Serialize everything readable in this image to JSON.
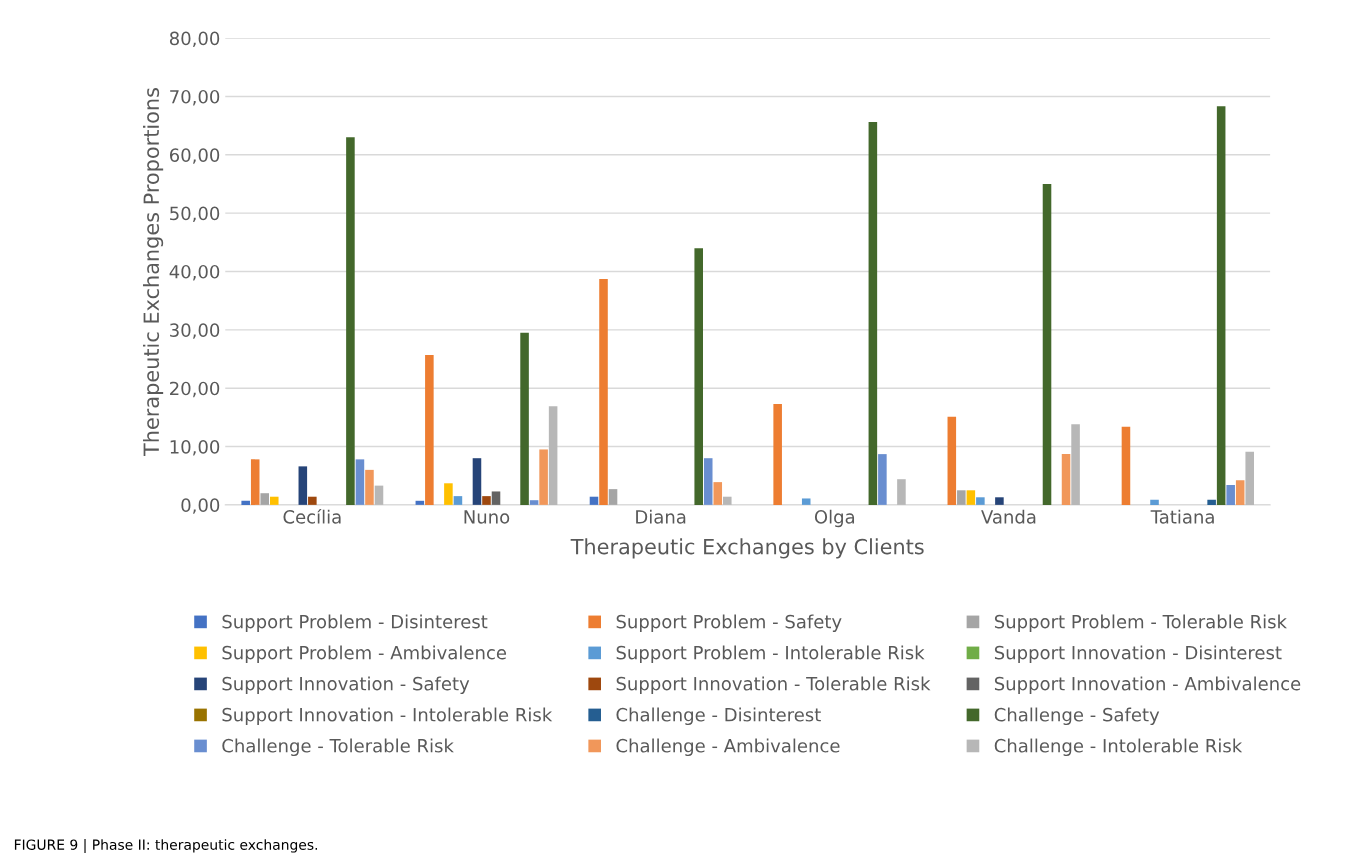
{
  "chart_data": {
    "type": "bar",
    "xlabel": "Therapeutic Exchanges by Clients",
    "ylabel": "Therapeutic Exchanges Proportions",
    "categories": [
      "Cecília",
      "Nuno",
      "Diana",
      "Olga",
      "Vanda",
      "Tatiana"
    ],
    "series": [
      {
        "name": "Support Problem - Disinterest",
        "color": "#4472c4",
        "values": [
          0.7,
          0.7,
          1.4,
          0,
          0,
          0
        ]
      },
      {
        "name": "Support Problem - Safety",
        "color": "#ed7d31",
        "values": [
          7.8,
          25.7,
          38.7,
          17.3,
          15.1,
          13.4
        ]
      },
      {
        "name": "Support Problem - Tolerable Risk",
        "color": "#a5a5a5",
        "values": [
          2.0,
          0,
          2.7,
          0,
          2.5,
          0
        ]
      },
      {
        "name": "Support Problem - Ambivalence",
        "color": "#ffc000",
        "values": [
          1.4,
          3.7,
          0,
          0,
          2.5,
          0
        ]
      },
      {
        "name": "Support Problem - Intolerable Risk",
        "color": "#5b9bd5",
        "values": [
          0,
          1.5,
          0,
          1.1,
          1.3,
          0.9
        ]
      },
      {
        "name": "Support Innovation - Disinterest",
        "color": "#70ad47",
        "values": [
          0,
          0,
          0,
          0,
          0,
          0
        ]
      },
      {
        "name": "Support Innovation - Safety",
        "color": "#264478",
        "values": [
          6.6,
          8.0,
          0,
          0,
          1.3,
          0
        ]
      },
      {
        "name": "Support Innovation - Tolerable Risk",
        "color": "#9e480e",
        "values": [
          1.4,
          1.5,
          0,
          0,
          0,
          0
        ]
      },
      {
        "name": "Support Innovation - Ambivalence",
        "color": "#636363",
        "values": [
          0,
          2.3,
          0,
          0,
          0,
          0
        ]
      },
      {
        "name": "Support Innovation - Intolerable Risk",
        "color": "#997300",
        "values": [
          0,
          0,
          0,
          0,
          0,
          0
        ]
      },
      {
        "name": "Challenge - Disinterest",
        "color": "#255e91",
        "values": [
          0,
          0,
          0,
          0,
          0,
          0.9
        ]
      },
      {
        "name": "Challenge - Safety",
        "color": "#43682b",
        "values": [
          63.0,
          29.5,
          44.0,
          65.6,
          55.0,
          68.3
        ]
      },
      {
        "name": "Challenge - Tolerable Risk",
        "color": "#698ed0",
        "values": [
          7.8,
          0.8,
          8.0,
          8.7,
          0,
          3.4
        ]
      },
      {
        "name": "Challenge - Ambivalence",
        "color": "#f1975a",
        "values": [
          6.0,
          9.5,
          3.9,
          0,
          8.7,
          4.2
        ]
      },
      {
        "name": "Challenge - Intolerable Risk",
        "color": "#b7b7b7",
        "values": [
          3.3,
          16.9,
          1.4,
          4.4,
          13.8,
          9.1
        ]
      }
    ],
    "ylim": [
      0,
      80
    ],
    "yticks": [
      {
        "value": 0,
        "label": "0,00"
      },
      {
        "value": 10,
        "label": "10,00"
      },
      {
        "value": 20,
        "label": "20,00"
      },
      {
        "value": 30,
        "label": "30,00"
      },
      {
        "value": 40,
        "label": "40,00"
      },
      {
        "value": 50,
        "label": "50,00"
      },
      {
        "value": 60,
        "label": "60,00"
      },
      {
        "value": 70,
        "label": "70,00"
      },
      {
        "value": 80,
        "label": "80,00"
      }
    ],
    "grid": "y",
    "legend": "bottom",
    "annotations": [
      "FIGURE 9 | Phase II: therapeutic exchanges."
    ]
  }
}
